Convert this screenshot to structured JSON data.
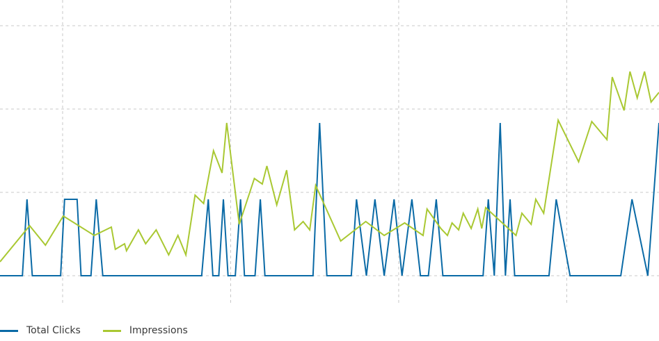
{
  "chart_data": {
    "type": "line",
    "title": "",
    "xlabel": "",
    "ylabel": "",
    "grid": true,
    "legend_position": "bottom-left",
    "xlim": [
      0,
      100
    ],
    "ylim": [
      -0.3333,
      3.0
    ],
    "x_gridlines": [
      9.5,
      35,
      60.5,
      86
    ],
    "y_gridlines": [
      0,
      1,
      2,
      3
    ],
    "series": [
      {
        "name": "Total Clicks",
        "color": "#0a6aa6",
        "points": [
          [
            0,
            0
          ],
          [
            3.4,
            0
          ],
          [
            4.1,
            0.917
          ],
          [
            4.9,
            0
          ],
          [
            9.2,
            0
          ],
          [
            9.8,
            0.917
          ],
          [
            11.7,
            0.917
          ],
          [
            12.3,
            0
          ],
          [
            13.8,
            0
          ],
          [
            14.6,
            0.917
          ],
          [
            15.6,
            0
          ],
          [
            30.6,
            0
          ],
          [
            31.6,
            0.917
          ],
          [
            32.3,
            0
          ],
          [
            33.2,
            0
          ],
          [
            33.9,
            0.917
          ],
          [
            34.6,
            0
          ],
          [
            35.7,
            0
          ],
          [
            36.5,
            0.917
          ],
          [
            37.1,
            0
          ],
          [
            38.7,
            0
          ],
          [
            39.5,
            0.917
          ],
          [
            40.2,
            0
          ],
          [
            47.5,
            0
          ],
          [
            48.5,
            1.833
          ],
          [
            49.6,
            0
          ],
          [
            53.3,
            0
          ],
          [
            54.1,
            0.917
          ],
          [
            55.6,
            0
          ],
          [
            56.9,
            0.917
          ],
          [
            58.3,
            0
          ],
          [
            59.8,
            0.917
          ],
          [
            61.0,
            0
          ],
          [
            62.5,
            0.917
          ],
          [
            63.8,
            0
          ],
          [
            65.0,
            0
          ],
          [
            66.2,
            0.917
          ],
          [
            67.2,
            0
          ],
          [
            73.3,
            0
          ],
          [
            74.1,
            0.917
          ],
          [
            75.0,
            0
          ],
          [
            75.9,
            1.833
          ],
          [
            76.7,
            0
          ],
          [
            77.4,
            0.917
          ],
          [
            78.1,
            0
          ],
          [
            83.3,
            0
          ],
          [
            84.4,
            0.917
          ],
          [
            86.5,
            0
          ],
          [
            94.2,
            0
          ],
          [
            95.9,
            0.917
          ],
          [
            98.3,
            0
          ],
          [
            100,
            1.833
          ]
        ]
      },
      {
        "name": "Impressions",
        "color": "#a9c832",
        "points": [
          [
            0,
            0.167
          ],
          [
            4.5,
            0.6
          ],
          [
            6.9,
            0.367
          ],
          [
            9.6,
            0.717
          ],
          [
            14.3,
            0.483
          ],
          [
            16.9,
            0.583
          ],
          [
            17.5,
            0.317
          ],
          [
            18.9,
            0.383
          ],
          [
            19.2,
            0.3
          ],
          [
            21.0,
            0.55
          ],
          [
            22.1,
            0.383
          ],
          [
            23.7,
            0.55
          ],
          [
            25.6,
            0.25
          ],
          [
            27.0,
            0.483
          ],
          [
            28.2,
            0.25
          ],
          [
            29.6,
            0.967
          ],
          [
            30.9,
            0.867
          ],
          [
            32.4,
            1.5
          ],
          [
            33.7,
            1.233
          ],
          [
            34.4,
            1.833
          ],
          [
            36.3,
            0.617
          ],
          [
            38.6,
            1.167
          ],
          [
            39.8,
            1.1
          ],
          [
            40.5,
            1.317
          ],
          [
            42.0,
            0.85
          ],
          [
            43.5,
            1.267
          ],
          [
            44.7,
            0.55
          ],
          [
            46.0,
            0.65
          ],
          [
            47.0,
            0.55
          ],
          [
            47.9,
            1.083
          ],
          [
            51.7,
            0.417
          ],
          [
            55.5,
            0.65
          ],
          [
            58.3,
            0.483
          ],
          [
            61.4,
            0.633
          ],
          [
            64.2,
            0.483
          ],
          [
            64.8,
            0.8
          ],
          [
            66.9,
            0.567
          ],
          [
            67.9,
            0.483
          ],
          [
            68.6,
            0.633
          ],
          [
            69.6,
            0.55
          ],
          [
            70.3,
            0.75
          ],
          [
            71.5,
            0.567
          ],
          [
            72.5,
            0.8
          ],
          [
            73.1,
            0.567
          ],
          [
            73.7,
            0.817
          ],
          [
            78.3,
            0.483
          ],
          [
            79.2,
            0.75
          ],
          [
            80.6,
            0.617
          ],
          [
            81.3,
            0.917
          ],
          [
            82.5,
            0.75
          ],
          [
            84.7,
            1.867
          ],
          [
            87.8,
            1.367
          ],
          [
            89.8,
            1.85
          ],
          [
            92.1,
            1.633
          ],
          [
            92.9,
            2.383
          ],
          [
            94.7,
            1.983
          ],
          [
            95.6,
            2.45
          ],
          [
            96.7,
            2.133
          ],
          [
            97.8,
            2.45
          ],
          [
            98.8,
            2.083
          ],
          [
            100,
            2.2
          ]
        ]
      }
    ]
  }
}
